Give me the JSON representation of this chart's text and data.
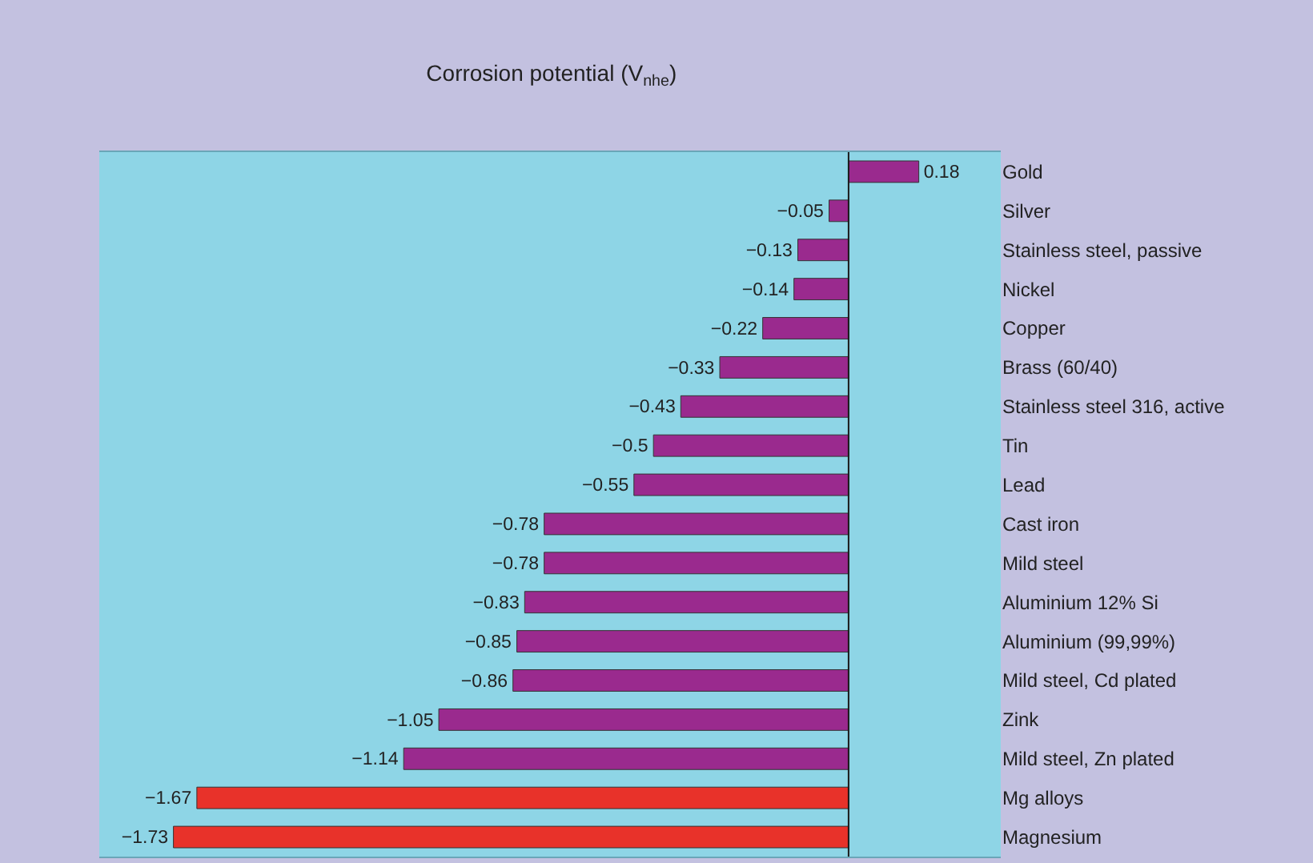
{
  "chart_data": {
    "type": "bar",
    "orientation": "horizontal",
    "title": "Corrosion potential (V$_{nhe}$)",
    "categories": [
      "Gold",
      "Silver",
      "Stainless steel, passive",
      "Nickel",
      "Copper",
      "Brass (60/40)",
      "Stainless steel 316, active",
      "Tin",
      "Lead",
      "Cast iron",
      "Mild steel",
      "Aluminium 12% Si",
      "Aluminium (99,99%)",
      "Mild steel, Cd plated",
      "Zink",
      "Mild steel, Zn plated",
      "Mg alloys",
      "Magnesium"
    ],
    "values": [
      0.18,
      -0.05,
      -0.13,
      -0.14,
      -0.22,
      -0.33,
      -0.43,
      -0.5,
      -0.55,
      -0.78,
      -0.78,
      -0.83,
      -0.85,
      -0.86,
      -1.05,
      -1.14,
      -1.67,
      -1.73
    ],
    "colors": [
      "#9a2a8e",
      "#9a2a8e",
      "#9a2a8e",
      "#9a2a8e",
      "#9a2a8e",
      "#9a2a8e",
      "#9a2a8e",
      "#9a2a8e",
      "#9a2a8e",
      "#9a2a8e",
      "#9a2a8e",
      "#9a2a8e",
      "#9a2a8e",
      "#9a2a8e",
      "#9a2a8e",
      "#9a2a8e",
      "#e8322a",
      "#e8322a"
    ],
    "xlim": [
      -1.92,
      0.39
    ],
    "data_labels": true,
    "ref_lines": [
      {
        "axis": "x",
        "value": 0,
        "color": "#1a1a1a"
      }
    ],
    "grid": false
  }
}
